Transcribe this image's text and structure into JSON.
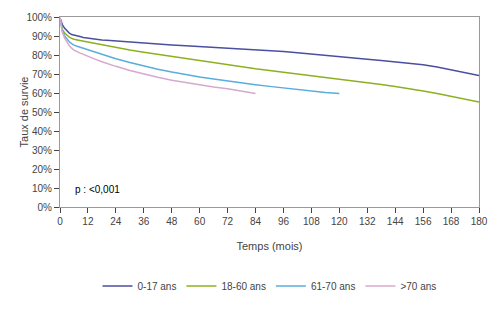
{
  "chart_data": {
    "type": "line",
    "xlabel": "Temps (mois)",
    "ylabel": "Taux de survie",
    "annotation": "p : <0,001",
    "xlim": [
      0,
      180
    ],
    "ylim": [
      0.0,
      1.005
    ],
    "xticks": [
      0,
      12,
      24,
      36,
      48,
      60,
      72,
      84,
      96,
      108,
      120,
      132,
      144,
      156,
      168,
      180
    ],
    "yticks": [
      {
        "value": 0.0,
        "label": "0%"
      },
      {
        "value": 0.1,
        "label": "10%"
      },
      {
        "value": 0.2,
        "label": "20%"
      },
      {
        "value": 0.3,
        "label": "30%"
      },
      {
        "value": 0.4,
        "label": "40%"
      },
      {
        "value": 0.5,
        "label": "50%"
      },
      {
        "value": 0.6,
        "label": "60%"
      },
      {
        "value": 0.7,
        "label": "70%"
      },
      {
        "value": 0.8,
        "label": "80%"
      },
      {
        "value": 0.9,
        "label": "90%"
      },
      {
        "value": 1.0,
        "label": "100%"
      }
    ],
    "grid": false,
    "legend": "bottom",
    "series": [
      {
        "name": "0-17 ans",
        "color": "#4B4FA0",
        "x": [
          0,
          1,
          2,
          3,
          4,
          5,
          6,
          7,
          8,
          9,
          10,
          12,
          14,
          16,
          18,
          20,
          22,
          24,
          27,
          30,
          33,
          36,
          40,
          44,
          48,
          54,
          60,
          66,
          72,
          78,
          84,
          90,
          96,
          102,
          108,
          114,
          120,
          126,
          132,
          138,
          144,
          150,
          156,
          162,
          168,
          174,
          180
        ],
        "values": [
          1.0,
          0.965,
          0.945,
          0.93,
          0.92,
          0.912,
          0.908,
          0.905,
          0.902,
          0.9,
          0.897,
          0.893,
          0.89,
          0.887,
          0.884,
          0.882,
          0.88,
          0.878,
          0.875,
          0.872,
          0.869,
          0.866,
          0.863,
          0.86,
          0.857,
          0.853,
          0.849,
          0.845,
          0.841,
          0.837,
          0.833,
          0.828,
          0.822,
          0.816,
          0.81,
          0.804,
          0.798,
          0.79,
          0.782,
          0.775,
          0.768,
          0.76,
          0.752,
          0.74,
          0.725,
          0.71,
          0.695
        ]
      },
      {
        "name": "18-60 ans",
        "color": "#8DB020",
        "x": [
          0,
          1,
          2,
          3,
          4,
          5,
          6,
          8,
          10,
          12,
          15,
          18,
          21,
          24,
          30,
          36,
          42,
          48,
          54,
          60,
          66,
          72,
          78,
          84,
          90,
          96,
          102,
          108,
          114,
          120,
          126,
          132,
          138,
          144,
          150,
          156,
          162,
          168,
          174,
          180
        ],
        "values": [
          1.0,
          0.94,
          0.92,
          0.907,
          0.898,
          0.892,
          0.887,
          0.882,
          0.877,
          0.872,
          0.865,
          0.857,
          0.85,
          0.843,
          0.83,
          0.818,
          0.807,
          0.796,
          0.784,
          0.773,
          0.762,
          0.751,
          0.741,
          0.731,
          0.722,
          0.713,
          0.704,
          0.695,
          0.686,
          0.677,
          0.668,
          0.658,
          0.648,
          0.637,
          0.626,
          0.614,
          0.6,
          0.585,
          0.57,
          0.556
        ]
      },
      {
        "name": "61-70 ans",
        "color": "#5AACDC",
        "x": [
          0,
          1,
          2,
          3,
          4,
          5,
          6,
          8,
          10,
          12,
          15,
          18,
          21,
          24,
          30,
          36,
          42,
          48,
          54,
          60,
          66,
          72,
          78,
          84,
          90,
          96,
          102,
          108,
          114,
          120
        ],
        "values": [
          1.0,
          0.93,
          0.905,
          0.887,
          0.874,
          0.864,
          0.856,
          0.848,
          0.84,
          0.831,
          0.819,
          0.807,
          0.795,
          0.784,
          0.764,
          0.746,
          0.729,
          0.714,
          0.7,
          0.688,
          0.677,
          0.666,
          0.656,
          0.647,
          0.638,
          0.629,
          0.621,
          0.613,
          0.606,
          0.6
        ]
      },
      {
        "name": ">70 ans",
        "color": "#D8A8CC",
        "x": [
          0,
          1,
          2,
          3,
          4,
          5,
          6,
          8,
          10,
          12,
          15,
          18,
          21,
          24,
          30,
          36,
          42,
          48,
          54,
          60,
          66,
          72,
          78,
          84
        ],
        "values": [
          1.0,
          0.925,
          0.893,
          0.87,
          0.853,
          0.84,
          0.83,
          0.818,
          0.807,
          0.797,
          0.782,
          0.768,
          0.755,
          0.744,
          0.722,
          0.703,
          0.686,
          0.671,
          0.658,
          0.646,
          0.635,
          0.625,
          0.613,
          0.6
        ]
      }
    ]
  }
}
